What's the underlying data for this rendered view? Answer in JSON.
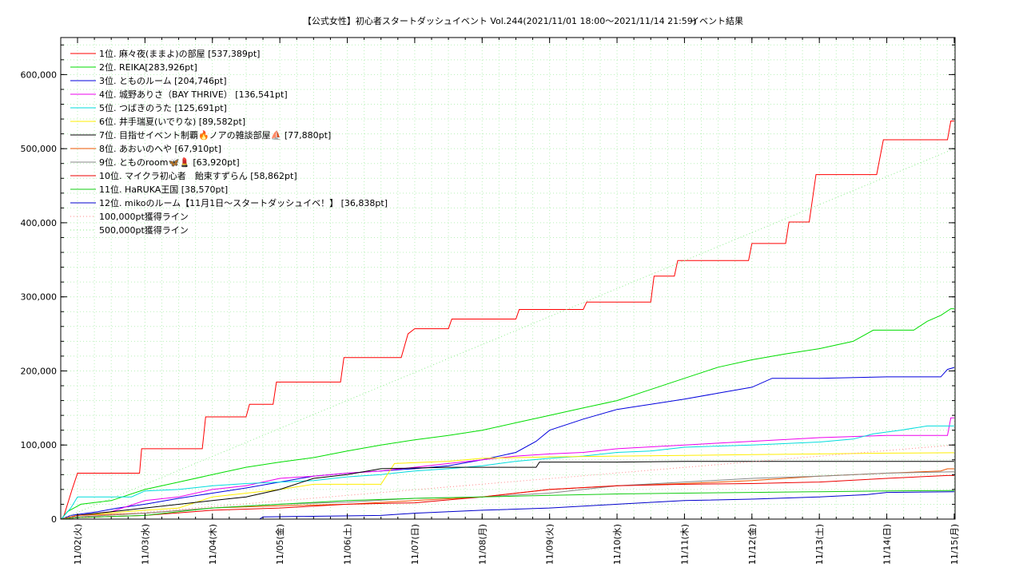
{
  "chart_data": {
    "type": "line",
    "title": "【公式女性】初心者スタートダッシュイベント Vol.244(2021/11/01 18:00～2021/11/14 21:59)",
    "subtitle": "イベント結果",
    "xlabel": "",
    "ylabel": "",
    "x_ticks": [
      "11/02(火)",
      "11/03(水)",
      "11/04(木)",
      "11/05(金)",
      "11/06(土)",
      "11/07(日)",
      "11/08(月)",
      "11/09(火)",
      "11/10(水)",
      "11/11(木)",
      "11/12(金)",
      "11/13(土)",
      "11/14(日)",
      "11/15(月)"
    ],
    "y_ticks": [
      "0",
      "100,000",
      "200,000",
      "300,000",
      "400,000",
      "500,000",
      "600,000"
    ],
    "ylim": [
      0,
      650000
    ],
    "x_unit": "days after 11/02(火) 00:00",
    "xlim": [
      -0.24,
      13
    ],
    "grid": true,
    "legend_position": "top-left",
    "series": [
      {
        "name": "1位. 麻々夜(ままよ)の部屋 [537,389pt]",
        "color": "#ff0000",
        "points": [
          [
            -0.24,
            0
          ],
          [
            -0.2,
            5000
          ],
          [
            -0.08,
            40000
          ],
          [
            0,
            62000
          ],
          [
            0.92,
            62000
          ],
          [
            0.95,
            95000
          ],
          [
            1.85,
            95000
          ],
          [
            1.9,
            138000
          ],
          [
            2.5,
            138000
          ],
          [
            2.55,
            155000
          ],
          [
            2.9,
            155000
          ],
          [
            2.95,
            185000
          ],
          [
            3.9,
            185000
          ],
          [
            3.95,
            218000
          ],
          [
            4.8,
            218000
          ],
          [
            4.9,
            250000
          ],
          [
            5.0,
            257000
          ],
          [
            5.5,
            257000
          ],
          [
            5.55,
            270000
          ],
          [
            6.5,
            270000
          ],
          [
            6.55,
            283000
          ],
          [
            7.5,
            283000
          ],
          [
            7.55,
            293000
          ],
          [
            8.5,
            293000
          ],
          [
            8.55,
            328000
          ],
          [
            8.85,
            328000
          ],
          [
            8.9,
            349000
          ],
          [
            9.95,
            349000
          ],
          [
            10.0,
            372000
          ],
          [
            10.5,
            372000
          ],
          [
            10.55,
            401000
          ],
          [
            10.85,
            401000
          ],
          [
            10.95,
            465000
          ],
          [
            11.85,
            465000
          ],
          [
            11.95,
            512000
          ],
          [
            12.9,
            512000
          ],
          [
            12.95,
            537389
          ],
          [
            13,
            537389
          ]
        ]
      },
      {
        "name": "2位. REIKA[283,926pt]",
        "color": "#00dd00",
        "points": [
          [
            -0.24,
            0
          ],
          [
            -0.15,
            10000
          ],
          [
            0.05,
            20000
          ],
          [
            0.5,
            25000
          ],
          [
            1.0,
            40000
          ],
          [
            1.5,
            50000
          ],
          [
            2.0,
            60000
          ],
          [
            2.5,
            70000
          ],
          [
            3.0,
            77000
          ],
          [
            3.5,
            83000
          ],
          [
            4.0,
            92000
          ],
          [
            4.5,
            100000
          ],
          [
            5.0,
            107000
          ],
          [
            5.5,
            113000
          ],
          [
            6.0,
            120000
          ],
          [
            6.5,
            130000
          ],
          [
            7.0,
            140000
          ],
          [
            7.5,
            150000
          ],
          [
            8.0,
            160000
          ],
          [
            8.5,
            175000
          ],
          [
            9.0,
            190000
          ],
          [
            9.5,
            205000
          ],
          [
            10.0,
            215000
          ],
          [
            10.5,
            223000
          ],
          [
            11.0,
            230000
          ],
          [
            11.5,
            240000
          ],
          [
            11.8,
            255000
          ],
          [
            12.4,
            255000
          ],
          [
            12.6,
            267000
          ],
          [
            12.8,
            275000
          ],
          [
            12.95,
            283926
          ],
          [
            13,
            283926
          ]
        ]
      },
      {
        "name": "3位. とものルーム [204,746pt]",
        "color": "#0000dd",
        "points": [
          [
            -0.24,
            0
          ],
          [
            -0.1,
            5000
          ],
          [
            0.3,
            10000
          ],
          [
            0.6,
            15000
          ],
          [
            1.0,
            20000
          ],
          [
            1.5,
            28000
          ],
          [
            2.0,
            35000
          ],
          [
            2.5,
            42000
          ],
          [
            3.0,
            50000
          ],
          [
            3.5,
            58000
          ],
          [
            4.0,
            62000
          ],
          [
            4.5,
            65000
          ],
          [
            5.0,
            68000
          ],
          [
            5.5,
            72000
          ],
          [
            6.0,
            80000
          ],
          [
            6.5,
            90000
          ],
          [
            6.8,
            105000
          ],
          [
            7.0,
            120000
          ],
          [
            7.5,
            135000
          ],
          [
            8.0,
            148000
          ],
          [
            8.5,
            155000
          ],
          [
            9.0,
            162000
          ],
          [
            9.5,
            170000
          ],
          [
            10.0,
            178000
          ],
          [
            10.3,
            190000
          ],
          [
            11.0,
            190000
          ],
          [
            12.0,
            192000
          ],
          [
            12.8,
            192000
          ],
          [
            12.9,
            202000
          ],
          [
            13,
            204746
          ]
        ]
      },
      {
        "name": "4位. 城野ありさ（BAY THRIVE） [136,541pt]",
        "color": "#ee00ee",
        "points": [
          [
            -0.24,
            0
          ],
          [
            0,
            5000
          ],
          [
            0.5,
            10000
          ],
          [
            1.0,
            25000
          ],
          [
            1.5,
            30000
          ],
          [
            2.0,
            40000
          ],
          [
            2.5,
            45000
          ],
          [
            3.0,
            55000
          ],
          [
            3.5,
            58000
          ],
          [
            4.0,
            62000
          ],
          [
            4.5,
            65000
          ],
          [
            5.0,
            70000
          ],
          [
            5.5,
            75000
          ],
          [
            6.0,
            80000
          ],
          [
            6.5,
            85000
          ],
          [
            7.0,
            88000
          ],
          [
            7.5,
            90000
          ],
          [
            8.0,
            95000
          ],
          [
            9.0,
            100000
          ],
          [
            10.0,
            105000
          ],
          [
            11.0,
            110000
          ],
          [
            12.0,
            113000
          ],
          [
            12.9,
            113000
          ],
          [
            12.95,
            136541
          ],
          [
            13,
            136541
          ]
        ]
      },
      {
        "name": "5位. つばきのうた [125,691pt]",
        "color": "#00dddd",
        "points": [
          [
            -0.24,
            0
          ],
          [
            -0.1,
            15000
          ],
          [
            0,
            30000
          ],
          [
            0.8,
            30000
          ],
          [
            1.0,
            38000
          ],
          [
            1.5,
            40000
          ],
          [
            2.0,
            45000
          ],
          [
            2.5,
            48000
          ],
          [
            3.0,
            50000
          ],
          [
            3.5,
            52000
          ],
          [
            4.0,
            57000
          ],
          [
            4.5,
            60000
          ],
          [
            5.0,
            65000
          ],
          [
            5.5,
            68000
          ],
          [
            6.0,
            72000
          ],
          [
            6.5,
            78000
          ],
          [
            7.0,
            82000
          ],
          [
            7.5,
            85000
          ],
          [
            8.0,
            90000
          ],
          [
            8.5,
            92000
          ],
          [
            9.0,
            97000
          ],
          [
            10.0,
            100000
          ],
          [
            11.0,
            104000
          ],
          [
            11.5,
            108000
          ],
          [
            11.8,
            115000
          ],
          [
            12.2,
            120000
          ],
          [
            12.6,
            125691
          ],
          [
            13,
            125691
          ]
        ]
      },
      {
        "name": "6位. 井手瑞夏(いでりな) [89,582pt]",
        "color": "#ffee00",
        "points": [
          [
            -0.24,
            0
          ],
          [
            0,
            5000
          ],
          [
            1.0,
            12000
          ],
          [
            1.5,
            15000
          ],
          [
            2.0,
            30000
          ],
          [
            3.0,
            40000
          ],
          [
            3.5,
            47000
          ],
          [
            4.5,
            47000
          ],
          [
            4.7,
            75000
          ],
          [
            5.5,
            78000
          ],
          [
            6.0,
            82000
          ],
          [
            7.0,
            84000
          ],
          [
            8.0,
            85000
          ],
          [
            9.0,
            86000
          ],
          [
            10.0,
            87000
          ],
          [
            11.0,
            88000
          ],
          [
            12.0,
            89000
          ],
          [
            13,
            89582
          ]
        ]
      },
      {
        "name": "7位. 目指せイベント制覇🔥ノアの雑談部屋⛵ [77,880pt]",
        "color": "#000000",
        "points": [
          [
            -0.24,
            0
          ],
          [
            0,
            5000
          ],
          [
            1.0,
            15000
          ],
          [
            2.0,
            25000
          ],
          [
            2.5,
            30000
          ],
          [
            3.0,
            40000
          ],
          [
            3.5,
            55000
          ],
          [
            4.0,
            60000
          ],
          [
            4.5,
            68000
          ],
          [
            5.5,
            70000
          ],
          [
            6.5,
            70000
          ],
          [
            6.8,
            70000
          ],
          [
            6.85,
            77000
          ],
          [
            8.0,
            77000
          ],
          [
            9.0,
            77880
          ],
          [
            13,
            77880
          ]
        ]
      },
      {
        "name": "8位. あおいのへや [67,910pt]",
        "color": "#ee5500",
        "points": [
          [
            -0.24,
            0
          ],
          [
            0,
            5000
          ],
          [
            1.0,
            8000
          ],
          [
            2.0,
            15000
          ],
          [
            3.0,
            18000
          ],
          [
            4.0,
            20000
          ],
          [
            5.0,
            25000
          ],
          [
            6.0,
            30000
          ],
          [
            7.0,
            40000
          ],
          [
            8.0,
            45000
          ],
          [
            9.0,
            48000
          ],
          [
            10.0,
            52000
          ],
          [
            11.0,
            58000
          ],
          [
            12.0,
            62000
          ],
          [
            12.8,
            65000
          ],
          [
            12.9,
            67910
          ],
          [
            13,
            67910
          ]
        ]
      },
      {
        "name": "9位. とものroom🦋💄 [63,920pt]",
        "color": "#888888",
        "points": [
          [
            -0.24,
            0
          ],
          [
            0,
            3000
          ],
          [
            1.0,
            8000
          ],
          [
            2.0,
            15000
          ],
          [
            3.0,
            20000
          ],
          [
            4.0,
            23000
          ],
          [
            5.0,
            28000
          ],
          [
            6.0,
            30000
          ],
          [
            7.0,
            35000
          ],
          [
            8.0,
            45000
          ],
          [
            9.0,
            50000
          ],
          [
            10.0,
            55000
          ],
          [
            11.0,
            58000
          ],
          [
            12.0,
            62000
          ],
          [
            13,
            63920
          ]
        ]
      },
      {
        "name": "10位. マイクラ初心者　飴束すずらん [58,862pt]",
        "color": "#ee0000",
        "points": [
          [
            -0.24,
            0
          ],
          [
            0,
            2000
          ],
          [
            1.0,
            5000
          ],
          [
            2.0,
            12000
          ],
          [
            3.0,
            15000
          ],
          [
            4.0,
            20000
          ],
          [
            5.0,
            22000
          ],
          [
            6.0,
            30000
          ],
          [
            7.0,
            40000
          ],
          [
            8.0,
            45000
          ],
          [
            9.0,
            47000
          ],
          [
            10.0,
            48000
          ],
          [
            11.0,
            50000
          ],
          [
            12.0,
            55000
          ],
          [
            12.9,
            58862
          ],
          [
            13,
            58862
          ]
        ]
      },
      {
        "name": "11位. HaRUKA王国 [38,570pt]",
        "color": "#11cc11",
        "points": [
          [
            -0.24,
            0
          ],
          [
            0,
            2000
          ],
          [
            1.0,
            5000
          ],
          [
            2.0,
            15000
          ],
          [
            3.0,
            20000
          ],
          [
            4.0,
            25000
          ],
          [
            5.0,
            28000
          ],
          [
            6.0,
            30000
          ],
          [
            7.0,
            32000
          ],
          [
            8.0,
            34000
          ],
          [
            9.0,
            35000
          ],
          [
            10.0,
            36000
          ],
          [
            11.0,
            37000
          ],
          [
            12.0,
            38000
          ],
          [
            13,
            38570
          ]
        ]
      },
      {
        "name": "12位. mikoのルーム【11月1日〜スタートダッシュイベ！】 [36,838pt]",
        "color": "#0000cc",
        "points": [
          [
            -0.24,
            0
          ],
          [
            2.7,
            0
          ],
          [
            2.75,
            3000
          ],
          [
            4.5,
            5000
          ],
          [
            5.0,
            8000
          ],
          [
            6.0,
            12000
          ],
          [
            7.0,
            15000
          ],
          [
            8.0,
            20000
          ],
          [
            9.0,
            25000
          ],
          [
            10.0,
            27000
          ],
          [
            11.0,
            30000
          ],
          [
            11.7,
            33000
          ],
          [
            12.0,
            36000
          ],
          [
            13,
            36838
          ]
        ]
      },
      {
        "name": "100,000pt獲得ライン",
        "color": "#ff8888",
        "style": "dotted",
        "points": [
          [
            -0.24,
            0
          ],
          [
            13,
            100000
          ]
        ]
      },
      {
        "name": "500,000pt獲得ライン",
        "color": "#88ee88",
        "style": "dotted",
        "points": [
          [
            -0.24,
            0
          ],
          [
            13,
            500000
          ]
        ]
      }
    ]
  }
}
